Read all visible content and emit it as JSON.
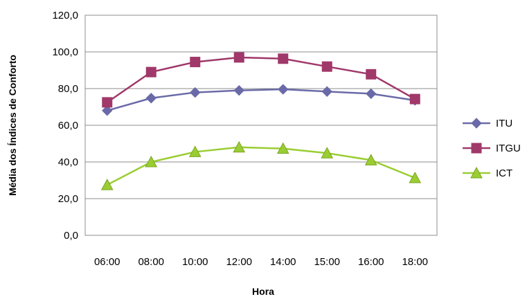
{
  "chart_data": {
    "type": "line",
    "title": "",
    "xlabel": "Hora",
    "ylabel": "Média dos Índices de Conforto",
    "categories": [
      "06:00",
      "08:00",
      "10:00",
      "12:00",
      "14:00",
      "15:00",
      "16:00",
      "18:00"
    ],
    "ylim": [
      0,
      120
    ],
    "yticks": [
      "0,0",
      "20,0",
      "40,0",
      "60,0",
      "80,0",
      "100,0",
      "120,0"
    ],
    "grid": true,
    "legend_position": "right",
    "series": [
      {
        "name": "ITU",
        "color": "#6a6aa8",
        "marker": "diamond",
        "values": [
          68.0,
          74.8,
          77.9,
          79.0,
          79.6,
          78.4,
          77.2,
          73.6
        ]
      },
      {
        "name": "ITGU",
        "color": "#a0386a",
        "marker": "square",
        "values": [
          72.5,
          89.0,
          94.5,
          97.0,
          96.3,
          92.0,
          87.8,
          74.3
        ]
      },
      {
        "name": "ICT",
        "color": "#9acd32",
        "marker": "triangle",
        "values": [
          27.5,
          40.0,
          45.5,
          48.0,
          47.3,
          44.8,
          41.0,
          31.3
        ]
      }
    ]
  }
}
